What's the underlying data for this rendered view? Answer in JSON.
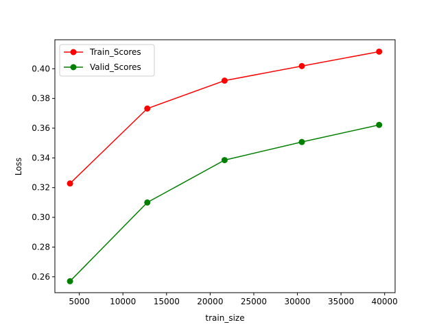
{
  "chart_data": {
    "type": "line",
    "title": "",
    "xlabel": "train_size",
    "ylabel": "Loss",
    "xlim": [
      2200,
      41200
    ],
    "ylim": [
      0.2493,
      0.4195
    ],
    "xticks": [
      5000,
      10000,
      15000,
      20000,
      25000,
      30000,
      35000,
      40000
    ],
    "yticks": [
      0.26,
      0.28,
      0.3,
      0.32,
      0.34,
      0.36,
      0.38,
      0.4
    ],
    "xtick_labels": [
      "5000",
      "10000",
      "15000",
      "20000",
      "25000",
      "30000",
      "35000",
      "40000"
    ],
    "ytick_labels": [
      "0.26",
      "0.28",
      "0.30",
      "0.32",
      "0.34",
      "0.36",
      "0.38",
      "0.40"
    ],
    "grid": false,
    "legend_position": "top-left",
    "x": [
      3937,
      12795,
      21653,
      30511,
      39369
    ],
    "series": [
      {
        "name": "Train_Scores",
        "color": "#ff0000",
        "marker": "circle",
        "values": [
          0.3228,
          0.3732,
          0.392,
          0.4018,
          0.4115
        ]
      },
      {
        "name": "Valid_Scores",
        "color": "#008000",
        "marker": "circle",
        "values": [
          0.257,
          0.31,
          0.3385,
          0.3507,
          0.3622
        ]
      }
    ]
  }
}
